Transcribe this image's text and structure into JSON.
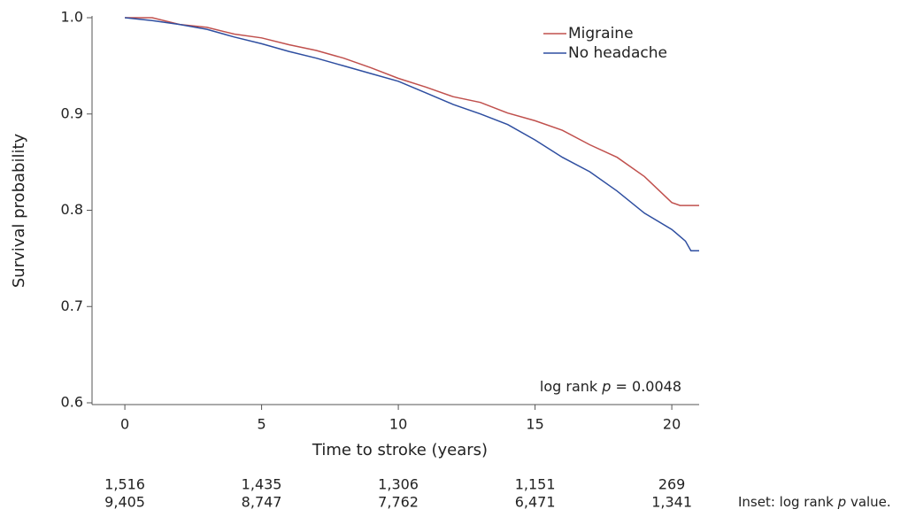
{
  "chart_data": {
    "type": "line",
    "y_label": "Survival probability",
    "x_label": "Time to stroke (years)",
    "xlim": [
      -1.2,
      21.0
    ],
    "ylim": [
      0.6,
      1.0
    ],
    "xticks": [
      0,
      5,
      10,
      15,
      20
    ],
    "yticks": [
      {
        "value": 1.0,
        "label": "1.0"
      },
      0.9,
      0.8,
      0.7,
      0.6
    ],
    "series": [
      {
        "name": "Migraine",
        "color": "#c0504d",
        "x": [
          0,
          1,
          2,
          3,
          4,
          5,
          6,
          7,
          8,
          9,
          10,
          11,
          12,
          13,
          14,
          15,
          16,
          17,
          18,
          19,
          20,
          20.3,
          21
        ],
        "values": [
          1.0,
          1.0,
          0.993,
          0.99,
          0.983,
          0.979,
          0.972,
          0.966,
          0.958,
          0.948,
          0.937,
          0.928,
          0.918,
          0.912,
          0.901,
          0.893,
          0.883,
          0.868,
          0.855,
          0.835,
          0.808,
          0.805,
          0.805
        ]
      },
      {
        "name": "No headache",
        "color": "#2e4ea0",
        "x": [
          0,
          1,
          2,
          3,
          4,
          5,
          6,
          7,
          8,
          9,
          10,
          11,
          12,
          13,
          14,
          15,
          16,
          17,
          18,
          19,
          20,
          20.5,
          20.7,
          21
        ],
        "values": [
          1.0,
          0.997,
          0.993,
          0.988,
          0.98,
          0.973,
          0.965,
          0.958,
          0.95,
          0.942,
          0.934,
          0.922,
          0.91,
          0.9,
          0.889,
          0.873,
          0.855,
          0.84,
          0.82,
          0.797,
          0.78,
          0.768,
          0.758,
          0.758
        ]
      }
    ],
    "annotation": {
      "prefix": "log rank ",
      "italic": "p",
      "suffix": " = 0.0048"
    },
    "risk_table": [
      {
        "color": "#d0343a",
        "values": [
          "1,516",
          "1,435",
          "1,306",
          "1,151",
          "269"
        ]
      },
      {
        "color": "#2e4ea0",
        "values": [
          "9,405",
          "8,747",
          "7,762",
          "6,471",
          "1,341"
        ]
      }
    ],
    "caption": {
      "prefix": "Inset: log rank ",
      "italic": "p",
      "suffix": " value."
    }
  }
}
